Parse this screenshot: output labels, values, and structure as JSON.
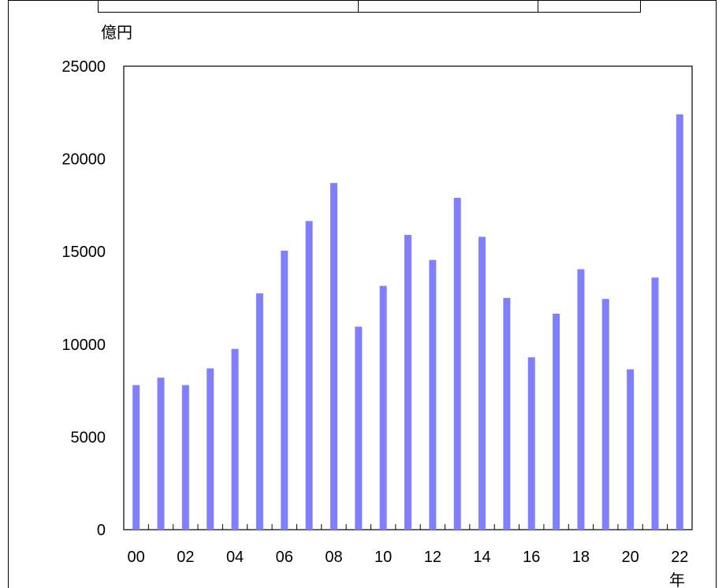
{
  "chart_data": {
    "type": "bar",
    "title": "",
    "ylabel": "億円",
    "xlabel": "年",
    "ylim": [
      0,
      25000
    ],
    "yticks": [
      0,
      5000,
      10000,
      15000,
      20000,
      25000
    ],
    "categories": [
      "00",
      "01",
      "02",
      "03",
      "04",
      "05",
      "06",
      "07",
      "08",
      "09",
      "10",
      "11",
      "12",
      "13",
      "14",
      "15",
      "16",
      "17",
      "18",
      "19",
      "20",
      "21",
      "22"
    ],
    "x_tick_labels": [
      "00",
      "02",
      "04",
      "06",
      "08",
      "10",
      "12",
      "14",
      "16",
      "18",
      "20",
      "22"
    ],
    "values": [
      7800,
      8200,
      7800,
      8700,
      9750,
      12750,
      15050,
      16650,
      18700,
      10950,
      13150,
      15900,
      14550,
      17900,
      15800,
      12500,
      9300,
      11650,
      14050,
      12450,
      8650,
      13600,
      22400
    ],
    "bar_color": "#8080FF",
    "grid": false
  }
}
